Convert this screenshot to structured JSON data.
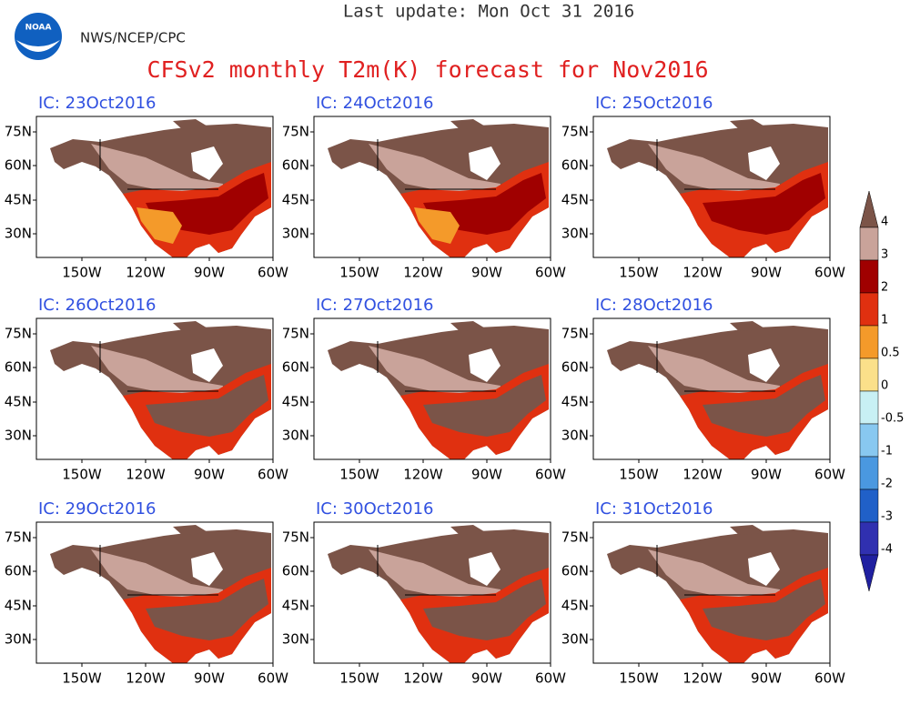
{
  "header": {
    "update": "Last update: Mon Oct 31 2016",
    "agency": "NWS/NCEP/CPC",
    "logo": "NOAA",
    "title": "CFSv2 monthly T2m(K) forecast for Nov2016"
  },
  "panels": [
    {
      "label": "IC: 23Oct2016"
    },
    {
      "label": "IC: 24Oct2016"
    },
    {
      "label": "IC: 25Oct2016"
    },
    {
      "label": "IC: 26Oct2016"
    },
    {
      "label": "IC: 27Oct2016"
    },
    {
      "label": "IC: 28Oct2016"
    },
    {
      "label": "IC: 29Oct2016"
    },
    {
      "label": "IC: 30Oct2016"
    },
    {
      "label": "IC: 31Oct2016"
    }
  ],
  "lat_labels": [
    "75N",
    "60N",
    "45N",
    "30N"
  ],
  "lon_labels": [
    "150W",
    "120W",
    "90W",
    "60W"
  ],
  "colorbar": {
    "labels": [
      4,
      3,
      2,
      1,
      0.5,
      0,
      -0.5,
      -1,
      -2,
      -3,
      -4
    ],
    "colors": [
      "#7b5448",
      "#c9a39a",
      "#a00000",
      "#e03010",
      "#f49a2a",
      "#fbe08a",
      "#c8f0f4",
      "#88c8f0",
      "#4a98e0",
      "#2060c8",
      "#3030b0",
      "#2020a0"
    ]
  }
}
